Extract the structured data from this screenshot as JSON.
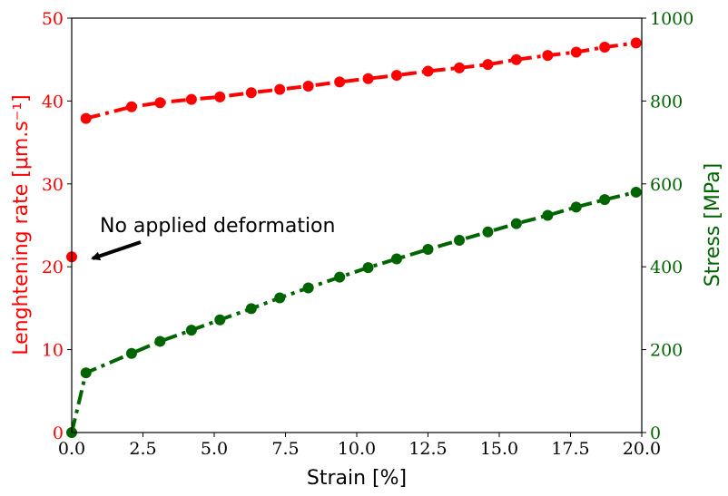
{
  "chart_data": {
    "type": "line",
    "xlabel": "Strain [%]",
    "ylabel_left": "Lenghtening rate [μm.s⁻¹]",
    "ylabel_right": "Stress [MPa]",
    "xlim": [
      0,
      20
    ],
    "ylim_left": [
      0,
      50
    ],
    "ylim_right": [
      0,
      1000
    ],
    "x_ticks": [
      "0.0",
      "2.5",
      "5.0",
      "7.5",
      "10.0",
      "12.5",
      "15.0",
      "17.5",
      "20.0"
    ],
    "y_left_ticks": [
      "0",
      "10",
      "20",
      "30",
      "40",
      "50"
    ],
    "y_right_ticks": [
      "0",
      "200",
      "400",
      "600",
      "800",
      "1000"
    ],
    "grid": false,
    "colors": {
      "left": "#ff0000",
      "right": "#006400"
    },
    "annotation": {
      "text": "No applied deformation",
      "point": [
        0,
        21.2
      ]
    },
    "series": [
      {
        "axis": "left",
        "color": "#ff0000",
        "isolated_point": [
          0,
          21.2
        ],
        "x": [
          0.5,
          2.1,
          3.1,
          4.2,
          5.2,
          6.3,
          7.3,
          8.3,
          9.4,
          10.4,
          11.4,
          12.5,
          13.6,
          14.6,
          15.6,
          16.7,
          17.7,
          18.7,
          19.8
        ],
        "y": [
          37.9,
          39.3,
          39.8,
          40.2,
          40.5,
          41.0,
          41.4,
          41.8,
          42.3,
          42.7,
          43.1,
          43.6,
          44.0,
          44.4,
          45.0,
          45.5,
          45.9,
          46.5,
          47.0
        ]
      },
      {
        "axis": "right",
        "color": "#006400",
        "x": [
          0.0,
          0.5,
          2.1,
          3.1,
          4.2,
          5.2,
          6.3,
          7.3,
          8.3,
          9.4,
          10.4,
          11.4,
          12.5,
          13.6,
          14.6,
          15.6,
          16.7,
          17.7,
          18.7,
          19.8
        ],
        "y": [
          0,
          144,
          191,
          220,
          247,
          272,
          299,
          325,
          349,
          375,
          398,
          419,
          442,
          464,
          484,
          504,
          524,
          544,
          562,
          580
        ]
      }
    ]
  }
}
